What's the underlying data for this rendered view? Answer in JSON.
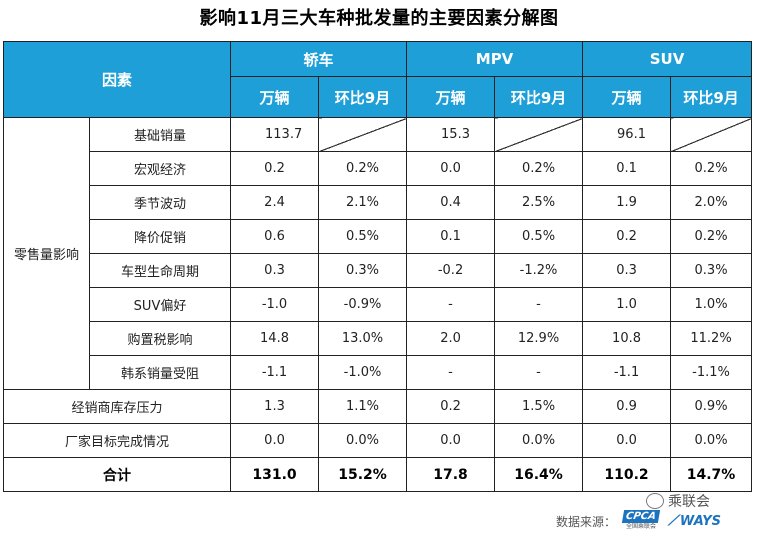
{
  "title": "影响11月三大车种批发量的主要因素分解图",
  "header": {
    "factor": "因素",
    "groups": [
      "轿车",
      "MPV",
      "SUV"
    ],
    "sub": [
      "万辆",
      "环比9月"
    ]
  },
  "group_label": "零售量影响",
  "rows": [
    {
      "label": "基础销量",
      "sedan": [
        "113.7",
        ""
      ],
      "mpv": [
        "15.3",
        ""
      ],
      "suv": [
        "96.1",
        ""
      ]
    },
    {
      "label": "宏观经济",
      "sedan": [
        "0.2",
        "0.2%"
      ],
      "mpv": [
        "0.0",
        "0.2%"
      ],
      "suv": [
        "0.1",
        "0.2%"
      ]
    },
    {
      "label": "季节波动",
      "sedan": [
        "2.4",
        "2.1%"
      ],
      "mpv": [
        "0.4",
        "2.5%"
      ],
      "suv": [
        "1.9",
        "2.0%"
      ]
    },
    {
      "label": "降价促销",
      "sedan": [
        "0.6",
        "0.5%"
      ],
      "mpv": [
        "0.1",
        "0.5%"
      ],
      "suv": [
        "0.2",
        "0.2%"
      ]
    },
    {
      "label": "车型生命周期",
      "sedan": [
        "0.3",
        "0.3%"
      ],
      "mpv": [
        "-0.2",
        "-1.2%"
      ],
      "suv": [
        "0.3",
        "0.3%"
      ]
    },
    {
      "label": "SUV偏好",
      "sedan": [
        "-1.0",
        "-0.9%"
      ],
      "mpv": [
        "-",
        "-"
      ],
      "suv": [
        "1.0",
        "1.0%"
      ]
    },
    {
      "label": "购置税影响",
      "sedan": [
        "14.8",
        "13.0%"
      ],
      "mpv": [
        "2.0",
        "12.9%"
      ],
      "suv": [
        "10.8",
        "11.2%"
      ]
    },
    {
      "label": "韩系销量受阻",
      "sedan": [
        "-1.1",
        "-1.0%"
      ],
      "mpv": [
        "-",
        "-"
      ],
      "suv": [
        "-1.1",
        "-1.1%"
      ]
    }
  ],
  "other_rows": [
    {
      "label": "经销商库存压力",
      "sedan": [
        "1.3",
        "1.1%"
      ],
      "mpv": [
        "0.2",
        "1.5%"
      ],
      "suv": [
        "0.9",
        "0.9%"
      ]
    },
    {
      "label": "厂家目标完成情况",
      "sedan": [
        "0.0",
        "0.0%"
      ],
      "mpv": [
        "0.0",
        "0.0%"
      ],
      "suv": [
        "0.0",
        "0.0%"
      ]
    }
  ],
  "total": {
    "label": "合计",
    "sedan": [
      "131.0",
      "15.2%"
    ],
    "mpv": [
      "17.8",
      "16.4%"
    ],
    "suv": [
      "110.2",
      "14.7%"
    ]
  },
  "watermark": "乘联会",
  "footer": {
    "source_label": "数据来源：",
    "cpca": "CPCA",
    "cpca_sub": "全国乘联会",
    "ways": "WAYS"
  }
}
